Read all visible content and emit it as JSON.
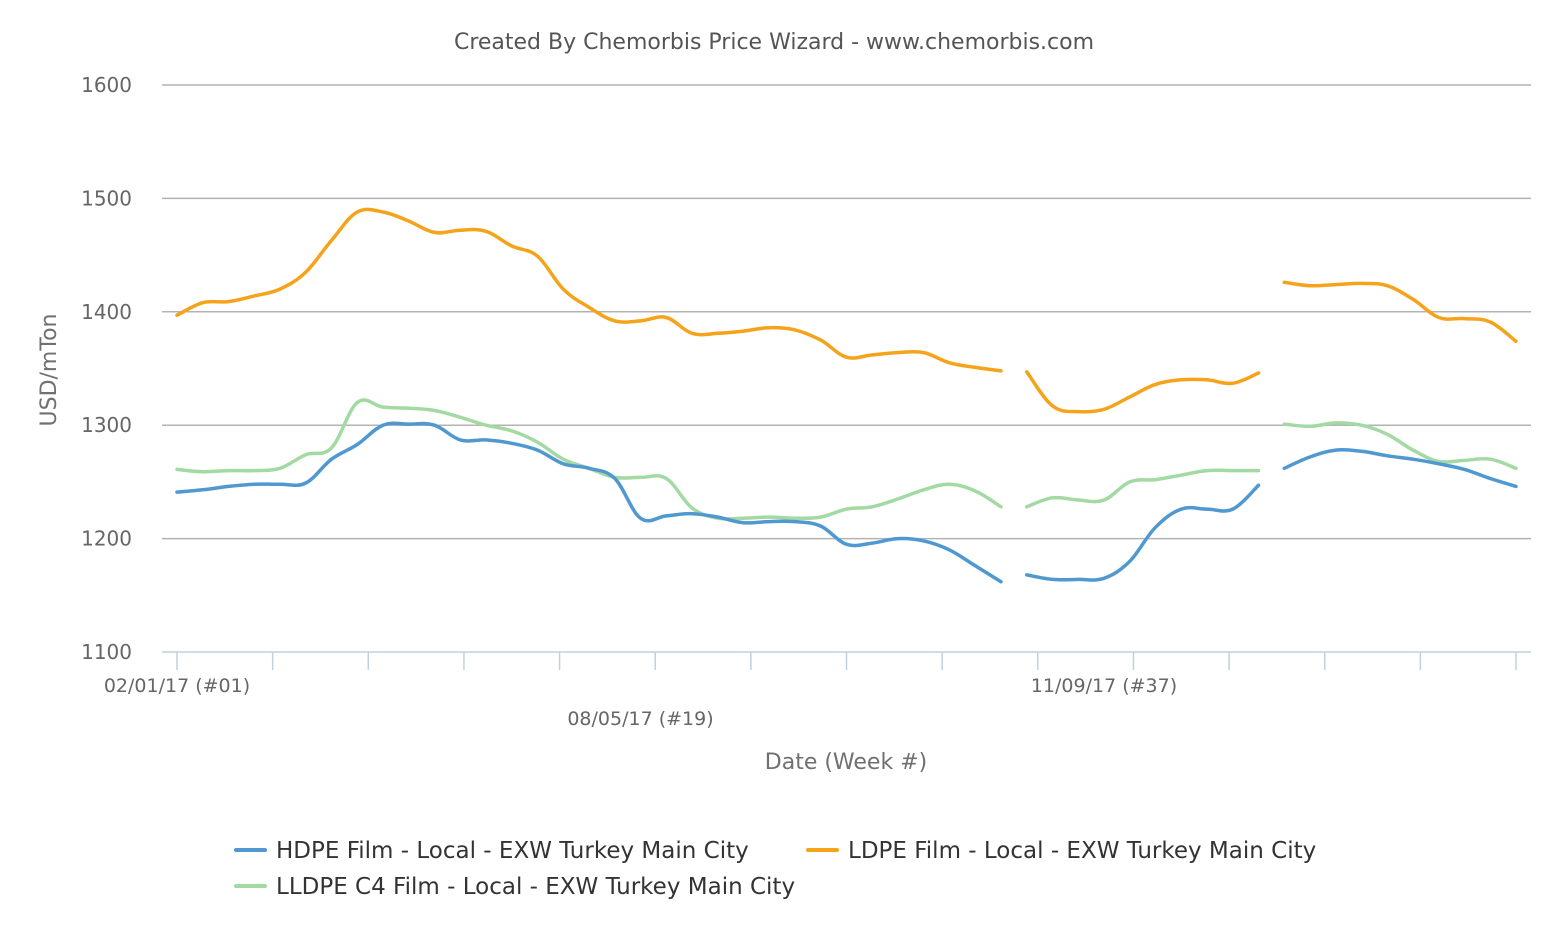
{
  "chart_data": {
    "type": "line",
    "title": "Created By Chemorbis Price Wizard - www.chemorbis.com",
    "xlabel": "Date (Week #)",
    "ylabel": "USD/mTon",
    "ylim": [
      1100,
      1600
    ],
    "yticks": [
      1100,
      1200,
      1300,
      1400,
      1500,
      1600
    ],
    "x_week_range": [
      1,
      47
    ],
    "x_tick_weeks": [
      1,
      4.33,
      7.66,
      11,
      14.33,
      17.66,
      21,
      24.33,
      27.66,
      31,
      34.33,
      37.66,
      41,
      44.33,
      47
    ],
    "x_tick_labels": [
      {
        "week": 1,
        "label": "02/01/17 (#01)",
        "row": 1
      },
      {
        "week": 19,
        "label": "08/05/17 (#19)",
        "row": 2
      },
      {
        "week": 37,
        "label": "11/09/17 (#37)",
        "row": 1
      }
    ],
    "grid": true,
    "legend_position": "bottom",
    "series": [
      {
        "name": "HDPE Film - Local - EXW Turkey Main City",
        "color": "#4f98d0",
        "segments": [
          [
            [
              1,
              1241
            ],
            [
              2,
              1243
            ],
            [
              3,
              1246
            ],
            [
              4,
              1248
            ],
            [
              5,
              1248
            ],
            [
              6,
              1249
            ],
            [
              7,
              1270
            ],
            [
              8,
              1283
            ],
            [
              9,
              1300
            ],
            [
              10,
              1301
            ],
            [
              11,
              1300
            ],
            [
              12,
              1287
            ],
            [
              13,
              1287
            ],
            [
              14,
              1284
            ],
            [
              15,
              1278
            ],
            [
              16,
              1266
            ],
            [
              17,
              1262
            ],
            [
              18,
              1253
            ],
            [
              19,
              1218
            ],
            [
              20,
              1220
            ],
            [
              21,
              1222
            ],
            [
              22,
              1219
            ],
            [
              23,
              1214
            ],
            [
              24,
              1215
            ],
            [
              25,
              1215
            ],
            [
              26,
              1211
            ],
            [
              27,
              1195
            ],
            [
              28,
              1196
            ],
            [
              29,
              1200
            ],
            [
              30,
              1198
            ],
            [
              31,
              1190
            ],
            [
              32,
              1176
            ],
            [
              33,
              1162
            ]
          ],
          [
            [
              34,
              1168
            ],
            [
              35,
              1164
            ],
            [
              36,
              1164
            ],
            [
              37,
              1165
            ],
            [
              38,
              1180
            ],
            [
              39,
              1210
            ],
            [
              40,
              1226
            ],
            [
              41,
              1226
            ],
            [
              42,
              1226
            ],
            [
              43,
              1247
            ]
          ],
          [
            [
              44,
              1262
            ],
            [
              45,
              1272
            ],
            [
              46,
              1278
            ],
            [
              47,
              1277
            ],
            [
              48,
              1273
            ],
            [
              49,
              1270
            ],
            [
              50,
              1266
            ],
            [
              51,
              1261
            ],
            [
              52,
              1253
            ],
            [
              53,
              1246
            ]
          ]
        ]
      },
      {
        "name": "LDPE Film - Local - EXW Turkey Main City",
        "color": "#f5a31a",
        "segments": [
          [
            [
              1,
              1397
            ],
            [
              2,
              1408
            ],
            [
              3,
              1409
            ],
            [
              4,
              1414
            ],
            [
              5,
              1420
            ],
            [
              6,
              1435
            ],
            [
              7,
              1463
            ],
            [
              8,
              1488
            ],
            [
              9,
              1488
            ],
            [
              10,
              1480
            ],
            [
              11,
              1470
            ],
            [
              12,
              1472
            ],
            [
              13,
              1471
            ],
            [
              14,
              1458
            ],
            [
              15,
              1449
            ],
            [
              16,
              1420
            ],
            [
              17,
              1404
            ],
            [
              18,
              1392
            ],
            [
              19,
              1392
            ],
            [
              20,
              1395
            ],
            [
              21,
              1381
            ],
            [
              22,
              1381
            ],
            [
              23,
              1383
            ],
            [
              24,
              1386
            ],
            [
              25,
              1384
            ],
            [
              26,
              1375
            ],
            [
              27,
              1360
            ],
            [
              28,
              1362
            ],
            [
              29,
              1364
            ],
            [
              30,
              1364
            ],
            [
              31,
              1355
            ],
            [
              32,
              1351
            ],
            [
              33,
              1348
            ]
          ],
          [
            [
              34,
              1347
            ],
            [
              35,
              1317
            ],
            [
              36,
              1312
            ],
            [
              37,
              1314
            ],
            [
              38,
              1325
            ],
            [
              39,
              1336
            ],
            [
              40,
              1340
            ],
            [
              41,
              1340
            ],
            [
              42,
              1337
            ],
            [
              43,
              1346
            ]
          ],
          [
            [
              44,
              1426
            ],
            [
              45,
              1423
            ],
            [
              46,
              1424
            ],
            [
              47,
              1425
            ],
            [
              48,
              1423
            ],
            [
              49,
              1411
            ],
            [
              50,
              1395
            ],
            [
              51,
              1394
            ],
            [
              52,
              1391
            ],
            [
              53,
              1374
            ]
          ]
        ]
      },
      {
        "name": "LLDPE C4 Film - Local - EXW Turkey Main City",
        "color": "#a3d9a3",
        "segments": [
          [
            [
              1,
              1261
            ],
            [
              2,
              1259
            ],
            [
              3,
              1260
            ],
            [
              4,
              1260
            ],
            [
              5,
              1262
            ],
            [
              6,
              1274
            ],
            [
              7,
              1280
            ],
            [
              8,
              1320
            ],
            [
              9,
              1316
            ],
            [
              10,
              1315
            ],
            [
              11,
              1313
            ],
            [
              12,
              1307
            ],
            [
              13,
              1300
            ],
            [
              14,
              1295
            ],
            [
              15,
              1285
            ],
            [
              16,
              1270
            ],
            [
              17,
              1262
            ],
            [
              18,
              1254
            ],
            [
              19,
              1254
            ],
            [
              20,
              1253
            ],
            [
              21,
              1227
            ],
            [
              22,
              1218
            ],
            [
              23,
              1218
            ],
            [
              24,
              1219
            ],
            [
              25,
              1218
            ],
            [
              26,
              1219
            ],
            [
              27,
              1226
            ],
            [
              28,
              1228
            ],
            [
              29,
              1235
            ],
            [
              30,
              1243
            ],
            [
              31,
              1248
            ],
            [
              32,
              1242
            ],
            [
              33,
              1228
            ]
          ],
          [
            [
              34,
              1228
            ],
            [
              35,
              1236
            ],
            [
              36,
              1234
            ],
            [
              37,
              1234
            ],
            [
              38,
              1250
            ],
            [
              39,
              1252
            ],
            [
              40,
              1256
            ],
            [
              41,
              1260
            ],
            [
              42,
              1260
            ],
            [
              43,
              1260
            ]
          ],
          [
            [
              44,
              1301
            ],
            [
              45,
              1299
            ],
            [
              46,
              1302
            ],
            [
              47,
              1300
            ],
            [
              48,
              1292
            ],
            [
              49,
              1278
            ],
            [
              50,
              1268
            ],
            [
              51,
              1269
            ],
            [
              52,
              1270
            ],
            [
              53,
              1262
            ]
          ]
        ]
      }
    ]
  }
}
